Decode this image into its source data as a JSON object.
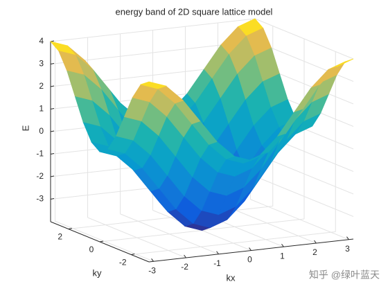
{
  "chart_data": {
    "type": "surface",
    "title": "energy band of 2D square lattice model",
    "xlabel": "kx",
    "ylabel": "ky",
    "zlabel": "E",
    "x": [
      -3.14,
      -2.62,
      -2.09,
      -1.57,
      -1.05,
      -0.52,
      0,
      0.52,
      1.05,
      1.57,
      2.09,
      2.62,
      3.14
    ],
    "y": [
      -3.14,
      -2.62,
      -2.09,
      -1.57,
      -1.05,
      -0.52,
      0,
      0.52,
      1.05,
      1.57,
      2.09,
      2.62,
      3.14
    ],
    "z": [
      [
        4,
        3.73,
        3,
        2,
        1,
        0.27,
        0,
        0.27,
        1,
        2,
        3,
        3.73,
        4
      ],
      [
        3.73,
        3.46,
        2.73,
        1.73,
        0.73,
        0,
        -0.27,
        0,
        0.73,
        1.73,
        2.73,
        3.46,
        3.73
      ],
      [
        3,
        2.73,
        2,
        1,
        0,
        -0.73,
        -1,
        -0.73,
        0,
        1,
        2,
        2.73,
        3
      ],
      [
        2,
        1.73,
        1,
        0,
        -1,
        -1.73,
        -2,
        -1.73,
        -1,
        0,
        1,
        1.73,
        2
      ],
      [
        1,
        0.73,
        0,
        -1,
        -2,
        -2.73,
        -3,
        -2.73,
        -2,
        -1,
        0,
        0.73,
        1
      ],
      [
        0.27,
        0,
        -0.73,
        -1.73,
        -2.73,
        -3.46,
        -3.73,
        -3.46,
        -2.73,
        -1.73,
        -0.73,
        0,
        0.27
      ],
      [
        0,
        -0.27,
        -1,
        -2,
        -3,
        -3.73,
        -4,
        -3.73,
        -3,
        -2,
        -1,
        -0.27,
        0
      ],
      [
        0.27,
        0,
        -0.73,
        -1.73,
        -2.73,
        -3.46,
        -3.73,
        -3.46,
        -2.73,
        -1.73,
        -0.73,
        0,
        0.27
      ],
      [
        1,
        0.73,
        0,
        -1,
        -2,
        -2.73,
        -3,
        -2.73,
        -2,
        -1,
        0,
        0.73,
        1
      ],
      [
        2,
        1.73,
        1,
        0,
        -1,
        -1.73,
        -2,
        -1.73,
        -1,
        0,
        1,
        1.73,
        2
      ],
      [
        3,
        2.73,
        2,
        1,
        0,
        -0.73,
        -1,
        -0.73,
        0,
        1,
        2,
        2.73,
        3
      ],
      [
        3.73,
        3.46,
        2.73,
        1.73,
        0.73,
        0,
        -0.27,
        0,
        0.73,
        1.73,
        2.73,
        3.46,
        3.73
      ],
      [
        4,
        3.73,
        3,
        2,
        1,
        0.27,
        0,
        0.27,
        1,
        2,
        3,
        3.73,
        4
      ]
    ],
    "xlim": [
      -3.14,
      3.14
    ],
    "ylim": [
      -3.14,
      3.14
    ],
    "zlim": [
      -4,
      4
    ],
    "xticks": [
      -3,
      -2,
      -1,
      0,
      1,
      2,
      3
    ],
    "yticks": [
      -2,
      0,
      2
    ],
    "zticks": [
      -3,
      -2,
      -1,
      0,
      1,
      2,
      3,
      4
    ],
    "colormap": "parula",
    "grid": true
  },
  "watermark": "知乎 @绿叶蓝天"
}
